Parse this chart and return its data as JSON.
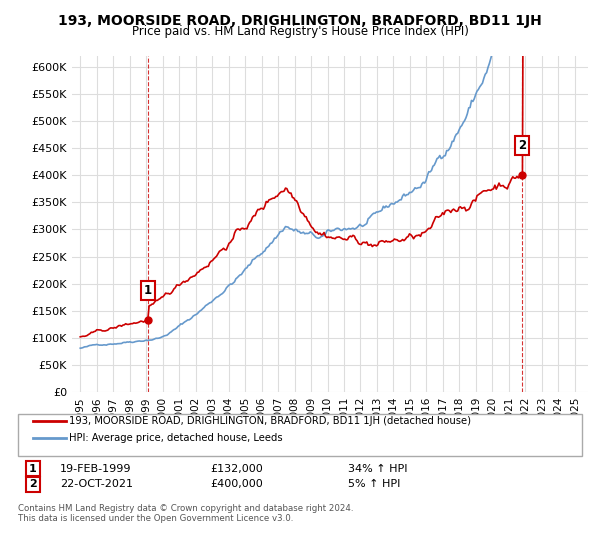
{
  "title": "193, MOORSIDE ROAD, DRIGHLINGTON, BRADFORD, BD11 1JH",
  "subtitle": "Price paid vs. HM Land Registry's House Price Index (HPI)",
  "ylabel_ticks": [
    "£0",
    "£50K",
    "£100K",
    "£150K",
    "£200K",
    "£250K",
    "£300K",
    "£350K",
    "£400K",
    "£450K",
    "£500K",
    "£550K",
    "£600K"
  ],
  "ytick_values": [
    0,
    50000,
    100000,
    150000,
    200000,
    250000,
    300000,
    350000,
    400000,
    450000,
    500000,
    550000,
    600000
  ],
  "ylim": [
    0,
    620000
  ],
  "xlim_start": 1994.5,
  "xlim_end": 2025.8,
  "xtick_years": [
    1995,
    1996,
    1997,
    1998,
    1999,
    2000,
    2001,
    2002,
    2003,
    2004,
    2005,
    2006,
    2007,
    2008,
    2009,
    2010,
    2011,
    2012,
    2013,
    2014,
    2015,
    2016,
    2017,
    2018,
    2019,
    2020,
    2021,
    2022,
    2023,
    2024,
    2025
  ],
  "red_line_color": "#cc0000",
  "blue_line_color": "#6699cc",
  "marker1_x": 1999.12,
  "marker1_y": 132000,
  "marker2_x": 2021.8,
  "marker2_y": 400000,
  "legend_label_red": "193, MOORSIDE ROAD, DRIGHLINGTON, BRADFORD, BD11 1JH (detached house)",
  "legend_label_blue": "HPI: Average price, detached house, Leeds",
  "footer": "Contains HM Land Registry data © Crown copyright and database right 2024.\nThis data is licensed under the Open Government Licence v3.0.",
  "background_color": "#ffffff",
  "grid_color": "#dddddd"
}
